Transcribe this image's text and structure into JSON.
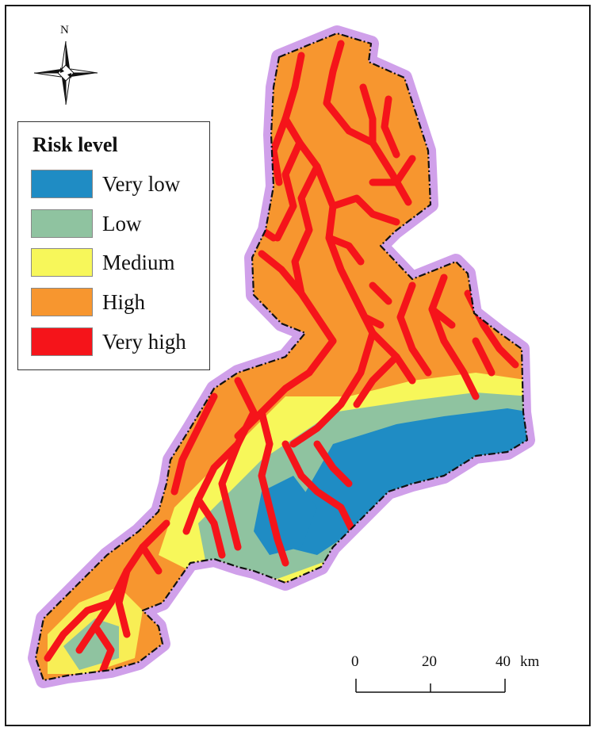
{
  "north_arrow": {
    "label": "N",
    "icon": "compass-rose-icon"
  },
  "legend": {
    "title": "Risk level",
    "items": [
      {
        "label": "Very low",
        "color": "#1f8cc4"
      },
      {
        "label": "Low",
        "color": "#8fc3a0"
      },
      {
        "label": "Medium",
        "color": "#f7f75a"
      },
      {
        "label": "High",
        "color": "#f7962f"
      },
      {
        "label": "Very high",
        "color": "#f5141a"
      }
    ]
  },
  "scale_bar": {
    "ticks": [
      "0",
      "20",
      "40"
    ],
    "unit": "km"
  },
  "colors": {
    "boundary_glow": "#c88fe6",
    "boundary_line": "#111111"
  }
}
